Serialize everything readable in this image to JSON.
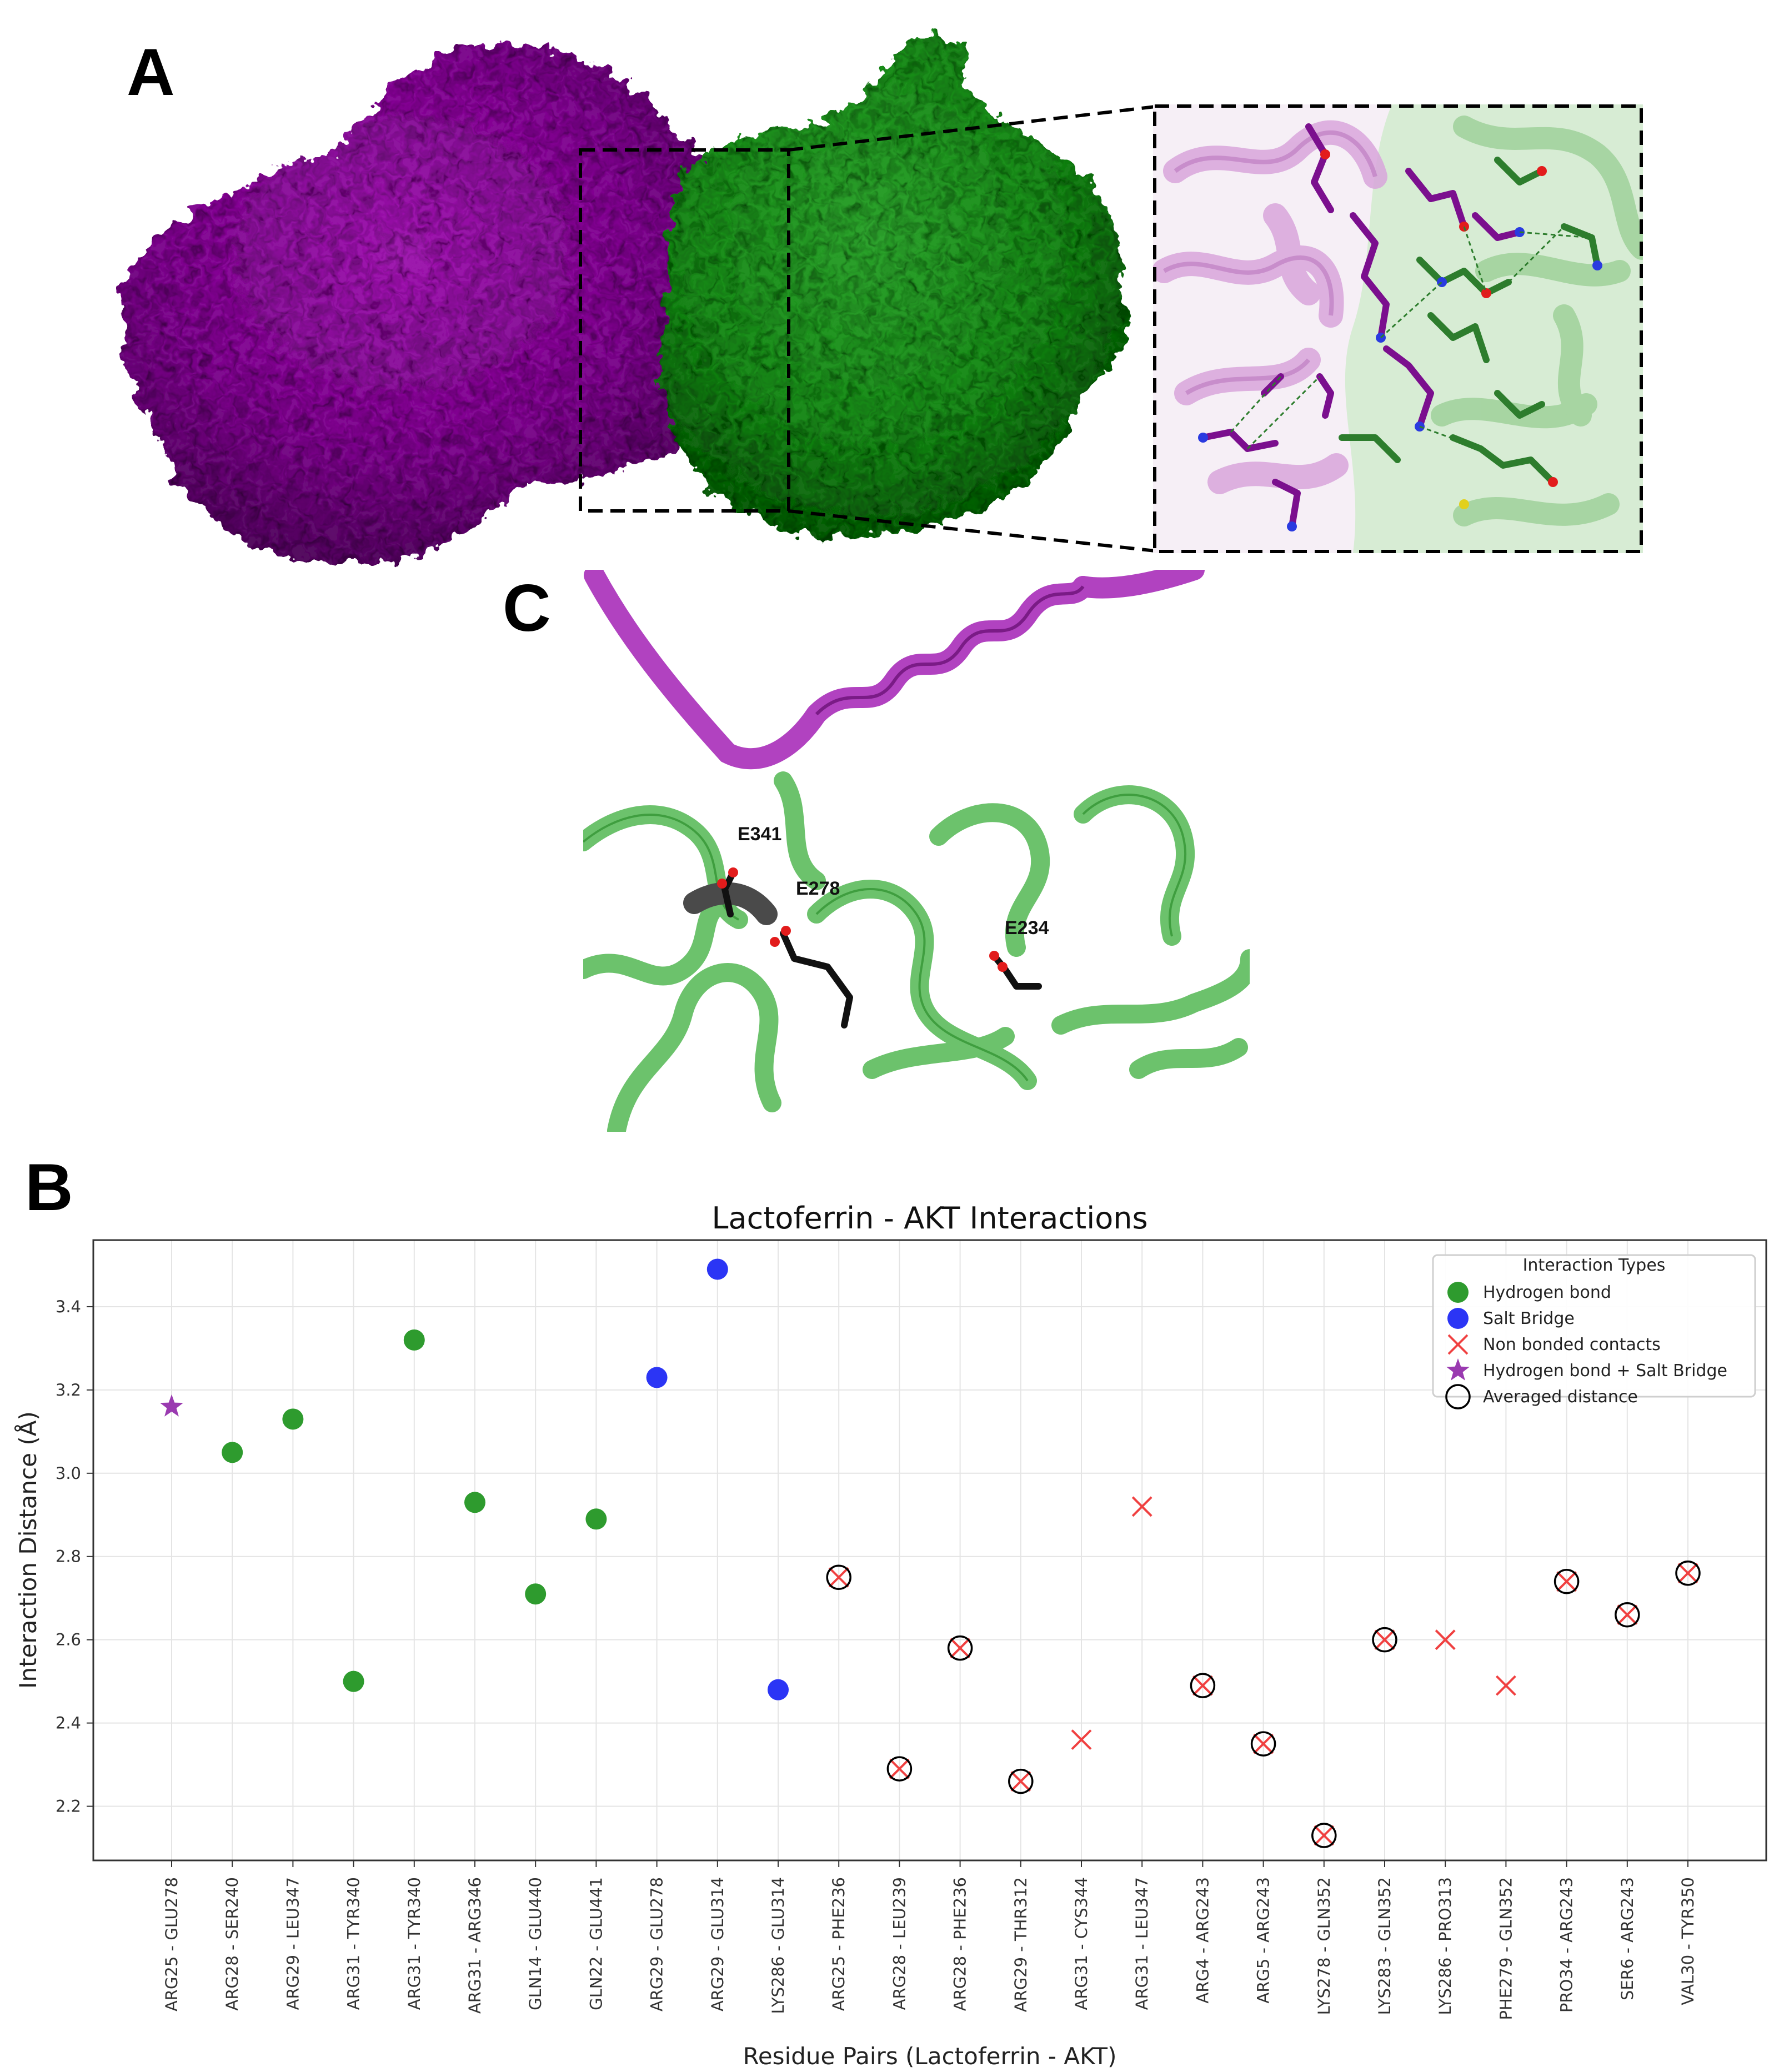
{
  "panels": {
    "a_label": "A",
    "b_label": "B",
    "c_label": "C"
  },
  "panel_c": {
    "residue_labels": [
      "E341",
      "E278",
      "E234"
    ]
  },
  "colors": {
    "lactoferrin": "#8a0f99",
    "akt": "#1e8c1e",
    "hydrogen_bond": "#2e9b2e",
    "salt_bridge": "#2b35f5",
    "non_bonded": "#f04040",
    "hbond_salt_bridge": "#9a3ab0",
    "averaged": "#000000"
  },
  "chart_data": {
    "type": "scatter",
    "title": "Lactoferrin - AKT Interactions",
    "xlabel": "Residue Pairs (Lactoferrin - AKT)",
    "ylabel": "Interaction Distance (Å)",
    "ylim": [
      2.07,
      3.56
    ],
    "yticks": [
      "2.2",
      "2.4",
      "2.6",
      "2.8",
      "3.0",
      "3.2",
      "3.4"
    ],
    "grid": true,
    "legend_position": "top-right",
    "legend_title": "Interaction Types",
    "legend": [
      {
        "key": "hbond",
        "label": "Hydrogen bond"
      },
      {
        "key": "salt",
        "label": "Salt Bridge"
      },
      {
        "key": "nonbond",
        "label": "Non bonded contacts"
      },
      {
        "key": "both",
        "label": "Hydrogen bond + Salt Bridge"
      },
      {
        "key": "avg",
        "label": "Averaged distance"
      }
    ],
    "categories": [
      "ARG25 - GLU278",
      "ARG28 - SER240",
      "ARG29 - LEU347",
      "ARG31 - TYR340",
      "ARG31 - TYR340",
      "ARG31 - ARG346",
      "GLN14 - GLU440",
      "GLN22 - GLU441",
      "ARG29 - GLU278",
      "ARG29 - GLU314",
      "LYS286 - GLU314",
      "ARG25 - PHE236",
      "ARG28 - LEU239",
      "ARG28 - PHE236",
      "ARG29 - THR312",
      "ARG31 - CYS344",
      "ARG31 - LEU347",
      "ARG4 - ARG243",
      "ARG5 - ARG243",
      "LYS278 - GLN352",
      "LYS283 - GLN352",
      "LYS286 - PRO313",
      "PHE279 - GLN352",
      "PRO34 - ARG243",
      "SER6 - ARG243",
      "VAL30 - TYR350"
    ],
    "points": [
      {
        "type": "both",
        "y": 3.16,
        "averaged": false
      },
      {
        "type": "hbond",
        "y": 3.05,
        "averaged": false
      },
      {
        "type": "hbond",
        "y": 3.13,
        "averaged": false
      },
      {
        "type": "hbond",
        "y": 2.5,
        "averaged": false
      },
      {
        "type": "hbond",
        "y": 3.32,
        "averaged": false
      },
      {
        "type": "hbond",
        "y": 2.93,
        "averaged": false
      },
      {
        "type": "hbond",
        "y": 2.71,
        "averaged": false
      },
      {
        "type": "hbond",
        "y": 2.89,
        "averaged": false
      },
      {
        "type": "salt",
        "y": 3.23,
        "averaged": false
      },
      {
        "type": "salt",
        "y": 3.49,
        "averaged": false
      },
      {
        "type": "salt",
        "y": 2.48,
        "averaged": false
      },
      {
        "type": "nonbond",
        "y": 2.75,
        "averaged": true
      },
      {
        "type": "nonbond",
        "y": 2.29,
        "averaged": true
      },
      {
        "type": "nonbond",
        "y": 2.58,
        "averaged": true
      },
      {
        "type": "nonbond",
        "y": 2.26,
        "averaged": true
      },
      {
        "type": "nonbond",
        "y": 2.36,
        "averaged": false
      },
      {
        "type": "nonbond",
        "y": 2.92,
        "averaged": false
      },
      {
        "type": "nonbond",
        "y": 2.49,
        "averaged": true
      },
      {
        "type": "nonbond",
        "y": 2.35,
        "averaged": true
      },
      {
        "type": "nonbond",
        "y": 2.13,
        "averaged": true
      },
      {
        "type": "nonbond",
        "y": 2.6,
        "averaged": true
      },
      {
        "type": "nonbond",
        "y": 2.6,
        "averaged": false
      },
      {
        "type": "nonbond",
        "y": 2.49,
        "averaged": false
      },
      {
        "type": "nonbond",
        "y": 2.74,
        "averaged": true
      },
      {
        "type": "nonbond",
        "y": 2.66,
        "averaged": true
      },
      {
        "type": "nonbond",
        "y": 2.76,
        "averaged": true
      }
    ]
  }
}
